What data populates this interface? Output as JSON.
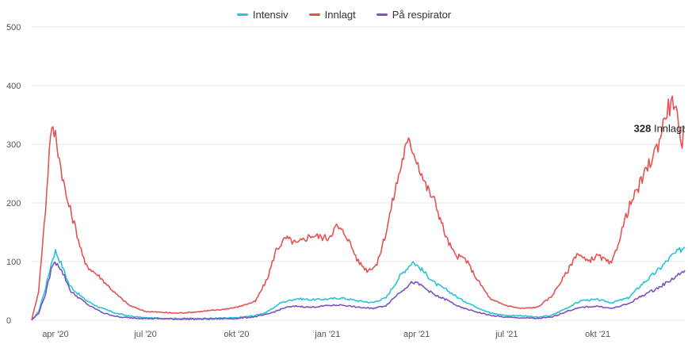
{
  "colors": {
    "Intensiv": "#2bc3d3",
    "Innlagt": "#e55353",
    "På respirator": "#7b52c1",
    "grid": "#e9e9e9",
    "axis_text": "#555555"
  },
  "chart_data": {
    "type": "line",
    "title": "",
    "xlabel": "",
    "ylabel": "",
    "ylim": [
      0,
      500
    ],
    "yticks": [
      0,
      100,
      200,
      300,
      400,
      500
    ],
    "grid": true,
    "legend": "top-center",
    "x_tick_labels": [
      {
        "date": "2020-04-01",
        "label": "apr '20"
      },
      {
        "date": "2020-07-01",
        "label": "jul '20"
      },
      {
        "date": "2020-10-01",
        "label": "okt '20"
      },
      {
        "date": "2021-01-01",
        "label": "jan '21"
      },
      {
        "date": "2021-04-01",
        "label": "apr '21"
      },
      {
        "date": "2021-07-01",
        "label": "jul '21"
      },
      {
        "date": "2021-10-01",
        "label": "okt '21"
      }
    ],
    "series": [
      {
        "name": "Intensiv",
        "points": [
          [
            "2020-03-08",
            0
          ],
          [
            "2020-03-15",
            15
          ],
          [
            "2020-03-22",
            55
          ],
          [
            "2020-03-29",
            105
          ],
          [
            "2020-04-01",
            118
          ],
          [
            "2020-04-08",
            92
          ],
          [
            "2020-04-15",
            60
          ],
          [
            "2020-04-22",
            48
          ],
          [
            "2020-05-01",
            35
          ],
          [
            "2020-05-15",
            22
          ],
          [
            "2020-06-01",
            12
          ],
          [
            "2020-06-15",
            7
          ],
          [
            "2020-07-01",
            4
          ],
          [
            "2020-08-01",
            3
          ],
          [
            "2020-09-01",
            3
          ],
          [
            "2020-10-01",
            4
          ],
          [
            "2020-10-20",
            8
          ],
          [
            "2020-11-01",
            14
          ],
          [
            "2020-11-15",
            30
          ],
          [
            "2020-12-01",
            37
          ],
          [
            "2020-12-15",
            35
          ],
          [
            "2021-01-01",
            36
          ],
          [
            "2021-01-15",
            38
          ],
          [
            "2021-02-01",
            33
          ],
          [
            "2021-02-15",
            30
          ],
          [
            "2021-03-01",
            38
          ],
          [
            "2021-03-15",
            75
          ],
          [
            "2021-03-28",
            100
          ],
          [
            "2021-04-05",
            88
          ],
          [
            "2021-04-20",
            62
          ],
          [
            "2021-05-01",
            52
          ],
          [
            "2021-05-15",
            36
          ],
          [
            "2021-06-01",
            22
          ],
          [
            "2021-06-15",
            12
          ],
          [
            "2021-07-01",
            8
          ],
          [
            "2021-07-15",
            8
          ],
          [
            "2021-08-01",
            5
          ],
          [
            "2021-08-15",
            8
          ],
          [
            "2021-09-01",
            22
          ],
          [
            "2021-09-15",
            34
          ],
          [
            "2021-10-01",
            35
          ],
          [
            "2021-10-15",
            30
          ],
          [
            "2021-11-01",
            38
          ],
          [
            "2021-11-15",
            62
          ],
          [
            "2021-12-01",
            85
          ],
          [
            "2021-12-15",
            110
          ],
          [
            "2021-12-28",
            125
          ]
        ]
      },
      {
        "name": "Innlagt",
        "points": [
          [
            "2020-03-08",
            0
          ],
          [
            "2020-03-15",
            50
          ],
          [
            "2020-03-22",
            190
          ],
          [
            "2020-03-27",
            322
          ],
          [
            "2020-04-01",
            318
          ],
          [
            "2020-04-05",
            275
          ],
          [
            "2020-04-12",
            210
          ],
          [
            "2020-04-20",
            165
          ],
          [
            "2020-04-27",
            120
          ],
          [
            "2020-05-01",
            95
          ],
          [
            "2020-05-15",
            75
          ],
          [
            "2020-06-01",
            45
          ],
          [
            "2020-06-15",
            25
          ],
          [
            "2020-07-01",
            15
          ],
          [
            "2020-08-01",
            12
          ],
          [
            "2020-08-20",
            14
          ],
          [
            "2020-09-15",
            18
          ],
          [
            "2020-10-01",
            22
          ],
          [
            "2020-10-20",
            32
          ],
          [
            "2020-11-01",
            70
          ],
          [
            "2020-11-10",
            120
          ],
          [
            "2020-11-20",
            140
          ],
          [
            "2020-12-01",
            130
          ],
          [
            "2020-12-15",
            145
          ],
          [
            "2021-01-01",
            140
          ],
          [
            "2021-01-10",
            160
          ],
          [
            "2021-01-20",
            145
          ],
          [
            "2021-02-01",
            100
          ],
          [
            "2021-02-10",
            85
          ],
          [
            "2021-02-20",
            95
          ],
          [
            "2021-03-01",
            150
          ],
          [
            "2021-03-10",
            220
          ],
          [
            "2021-03-20",
            290
          ],
          [
            "2021-03-25",
            305
          ],
          [
            "2021-04-01",
            275
          ],
          [
            "2021-04-10",
            230
          ],
          [
            "2021-04-20",
            200
          ],
          [
            "2021-05-01",
            140
          ],
          [
            "2021-05-10",
            110
          ],
          [
            "2021-05-20",
            105
          ],
          [
            "2021-06-01",
            70
          ],
          [
            "2021-06-15",
            35
          ],
          [
            "2021-07-01",
            25
          ],
          [
            "2021-07-15",
            20
          ],
          [
            "2021-08-01",
            22
          ],
          [
            "2021-08-15",
            40
          ],
          [
            "2021-09-01",
            85
          ],
          [
            "2021-09-10",
            115
          ],
          [
            "2021-09-20",
            100
          ],
          [
            "2021-10-01",
            110
          ],
          [
            "2021-10-15",
            95
          ],
          [
            "2021-11-01",
            190
          ],
          [
            "2021-11-15",
            240
          ],
          [
            "2021-12-01",
            300
          ],
          [
            "2021-12-10",
            360
          ],
          [
            "2021-12-18",
            375
          ],
          [
            "2021-12-24",
            290
          ],
          [
            "2021-12-28",
            328
          ]
        ]
      },
      {
        "name": "På respirator",
        "points": [
          [
            "2020-03-08",
            0
          ],
          [
            "2020-03-15",
            12
          ],
          [
            "2020-03-22",
            45
          ],
          [
            "2020-03-29",
            95
          ],
          [
            "2020-04-03",
            98
          ],
          [
            "2020-04-10",
            75
          ],
          [
            "2020-04-17",
            48
          ],
          [
            "2020-04-25",
            38
          ],
          [
            "2020-05-05",
            25
          ],
          [
            "2020-05-20",
            12
          ],
          [
            "2020-06-05",
            5
          ],
          [
            "2020-07-01",
            3
          ],
          [
            "2020-08-01",
            2
          ],
          [
            "2020-09-01",
            2
          ],
          [
            "2020-10-01",
            3
          ],
          [
            "2020-10-20",
            6
          ],
          [
            "2020-11-01",
            10
          ],
          [
            "2020-11-20",
            22
          ],
          [
            "2020-12-01",
            24
          ],
          [
            "2020-12-15",
            22
          ],
          [
            "2021-01-01",
            25
          ],
          [
            "2021-01-15",
            26
          ],
          [
            "2021-02-01",
            22
          ],
          [
            "2021-02-15",
            20
          ],
          [
            "2021-03-01",
            25
          ],
          [
            "2021-03-15",
            48
          ],
          [
            "2021-03-28",
            65
          ],
          [
            "2021-04-05",
            60
          ],
          [
            "2021-04-20",
            42
          ],
          [
            "2021-05-01",
            35
          ],
          [
            "2021-05-15",
            22
          ],
          [
            "2021-06-01",
            14
          ],
          [
            "2021-06-15",
            8
          ],
          [
            "2021-07-01",
            5
          ],
          [
            "2021-08-01",
            3
          ],
          [
            "2021-08-15",
            5
          ],
          [
            "2021-09-01",
            16
          ],
          [
            "2021-09-15",
            22
          ],
          [
            "2021-10-01",
            24
          ],
          [
            "2021-10-15",
            20
          ],
          [
            "2021-11-01",
            28
          ],
          [
            "2021-11-15",
            42
          ],
          [
            "2021-12-01",
            55
          ],
          [
            "2021-12-15",
            70
          ],
          [
            "2021-12-28",
            85
          ]
        ]
      }
    ],
    "annotation": {
      "series": "Innlagt",
      "value": "328",
      "label": "Innlagt"
    }
  }
}
